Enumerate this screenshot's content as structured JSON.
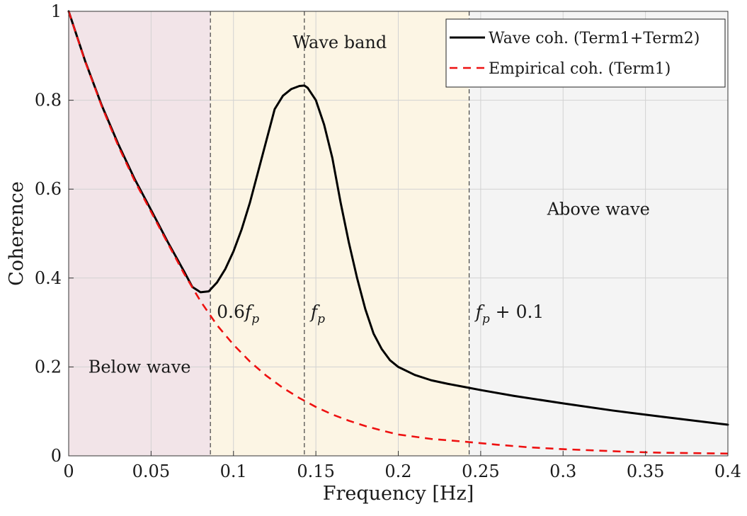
{
  "chart_data": {
    "type": "line",
    "title": "",
    "xlabel": "Frequency [Hz]",
    "ylabel": "Coherence",
    "xlim": [
      0,
      0.4
    ],
    "ylim": [
      0,
      1
    ],
    "xticks": [
      0,
      0.05,
      0.1,
      0.15,
      0.2,
      0.25,
      0.3,
      0.35,
      0.4
    ],
    "xtick_labels": [
      "0",
      "0.05",
      "0.1",
      "0.15",
      "0.2",
      "0.25",
      "0.3",
      "0.35",
      "0.4"
    ],
    "yticks": [
      0,
      0.2,
      0.4,
      0.6,
      0.8,
      1
    ],
    "ytick_labels": [
      "0",
      "0.2",
      "0.4",
      "0.6",
      "0.8",
      "1"
    ],
    "grid": true,
    "legend_position": "top-right",
    "regions": [
      {
        "label": "Below wave",
        "x_start": 0,
        "x_end": 0.086,
        "color": "#f2e4e8"
      },
      {
        "label": "Wave band",
        "x_start": 0.086,
        "x_end": 0.243,
        "color": "#fcf5e4"
      },
      {
        "label": "Above wave",
        "x_start": 0.243,
        "x_end": 0.4,
        "color": "#f4f4f4"
      }
    ],
    "vlines": [
      {
        "label_base": "0.6",
        "label_var": "f",
        "label_sub": "p",
        "label_suffix": "",
        "x": 0.086
      },
      {
        "label_base": "",
        "label_var": "f",
        "label_sub": "p",
        "label_suffix": "",
        "x": 0.143
      },
      {
        "label_base": "",
        "label_var": "f",
        "label_sub": "p",
        "label_suffix": " + 0.1",
        "x": 0.243
      }
    ],
    "series": [
      {
        "name": "Wave coh. (Term1+Term2)",
        "color": "#000000",
        "dash": "solid",
        "x": [
          0,
          0.01,
          0.02,
          0.03,
          0.04,
          0.05,
          0.06,
          0.07,
          0.075,
          0.08,
          0.085,
          0.09,
          0.095,
          0.1,
          0.105,
          0.11,
          0.115,
          0.12,
          0.125,
          0.13,
          0.135,
          0.14,
          0.143,
          0.145,
          0.15,
          0.155,
          0.16,
          0.165,
          0.17,
          0.175,
          0.18,
          0.185,
          0.19,
          0.195,
          0.2,
          0.21,
          0.22,
          0.23,
          0.24,
          0.25,
          0.27,
          0.3,
          0.33,
          0.36,
          0.4
        ],
        "y": [
          1.0,
          0.888,
          0.789,
          0.702,
          0.623,
          0.553,
          0.482,
          0.415,
          0.38,
          0.368,
          0.37,
          0.39,
          0.42,
          0.46,
          0.51,
          0.57,
          0.64,
          0.71,
          0.78,
          0.81,
          0.825,
          0.832,
          0.833,
          0.828,
          0.8,
          0.745,
          0.67,
          0.57,
          0.48,
          0.4,
          0.33,
          0.275,
          0.24,
          0.215,
          0.2,
          0.182,
          0.17,
          0.162,
          0.155,
          0.148,
          0.135,
          0.118,
          0.102,
          0.088,
          0.07
        ]
      },
      {
        "name": "Empirical coh. (Term1)",
        "color": "#ee1111",
        "dash": "dashed",
        "x": [
          0,
          0.01,
          0.02,
          0.03,
          0.04,
          0.05,
          0.06,
          0.07,
          0.08,
          0.09,
          0.1,
          0.11,
          0.12,
          0.13,
          0.14,
          0.15,
          0.16,
          0.17,
          0.18,
          0.19,
          0.2,
          0.22,
          0.24,
          0.26,
          0.28,
          0.3,
          0.32,
          0.34,
          0.36,
          0.38,
          0.4
        ],
        "y": [
          1.0,
          0.887,
          0.787,
          0.698,
          0.619,
          0.549,
          0.479,
          0.41,
          0.348,
          0.294,
          0.25,
          0.212,
          0.18,
          0.153,
          0.13,
          0.11,
          0.093,
          0.079,
          0.067,
          0.057,
          0.048,
          0.038,
          0.032,
          0.025,
          0.019,
          0.015,
          0.012,
          0.009,
          0.007,
          0.006,
          0.005
        ]
      }
    ]
  }
}
